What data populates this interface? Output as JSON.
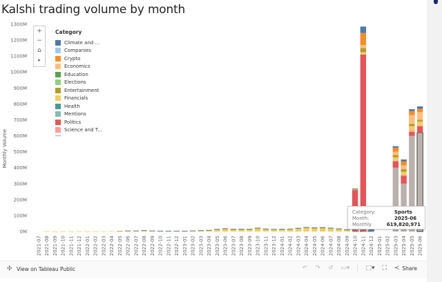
{
  "title": "Kalshi trading volume by month",
  "zoom_controls": {
    "zoom_in": "+",
    "zoom_out": "−",
    "home": "⌂",
    "pan": "▸"
  },
  "legend": {
    "title": "Category",
    "items": [
      {
        "label": "Climate and ...",
        "color": "#4e79a7"
      },
      {
        "label": "Companies",
        "color": "#a0cbe8"
      },
      {
        "label": "Crypto",
        "color": "#f28e2b"
      },
      {
        "label": "Economics",
        "color": "#ffbe7d"
      },
      {
        "label": "Education",
        "color": "#59a14f"
      },
      {
        "label": "Elections",
        "color": "#8cd17d"
      },
      {
        "label": "Entertainment",
        "color": "#b6992d"
      },
      {
        "label": "Financials",
        "color": "#f1ce63"
      },
      {
        "label": "Health",
        "color": "#499894"
      },
      {
        "label": "Mentions",
        "color": "#86bcb6"
      },
      {
        "label": "Politics",
        "color": "#e15759"
      },
      {
        "label": "Science and T...",
        "color": "#ff9d9a"
      }
    ]
  },
  "tooltip": {
    "category_label": "Category:",
    "category_value": "Sports",
    "month_label": "Month:",
    "month_value": "2025-06",
    "volume_label": "Monthly Volume:",
    "volume_value": "619,820,971"
  },
  "footer": {
    "view_label": "View on Tableau Public",
    "share_label": "Share"
  },
  "chart_data": {
    "type": "bar",
    "stacked": true,
    "title": "Kalshi trading volume by month",
    "xlabel": "",
    "ylabel": "Monthly Volume",
    "ylim": [
      0,
      1300
    ],
    "yticks": [
      "0M",
      "100M",
      "200M",
      "300M",
      "400M",
      "500M",
      "600M",
      "700M",
      "800M",
      "900M",
      "1000M",
      "1100M",
      "1200M",
      "1300M"
    ],
    "categories": [
      "2021-07",
      "2021-08",
      "2021-09",
      "2021-10",
      "2021-11",
      "2021-12",
      "2022-01",
      "2022-02",
      "2022-03",
      "2022-04",
      "2022-05",
      "2022-06",
      "2022-07",
      "2022-08",
      "2022-09",
      "2022-10",
      "2022-11",
      "2022-12",
      "2023-01",
      "2023-02",
      "2023-03",
      "2023-04",
      "2023-05",
      "2023-06",
      "2023-07",
      "2023-08",
      "2023-09",
      "2023-10",
      "2023-11",
      "2023-12",
      "2024-01",
      "2024-02",
      "2024-03",
      "2024-04",
      "2024-05",
      "2024-06",
      "2024-07",
      "2024-08",
      "2024-09",
      "2024-10",
      "2024-11",
      "2024-12",
      "2025-01",
      "2025-02",
      "2025-03",
      "2025-04",
      "2025-05",
      "2025-06"
    ],
    "series": [
      {
        "name": "Sports",
        "color": "#bab0ac",
        "values": [
          0,
          0,
          0,
          0,
          0,
          0,
          0,
          0,
          0,
          0,
          0,
          0,
          0,
          0,
          0,
          0,
          0,
          0,
          0,
          0,
          0,
          0,
          0,
          0,
          0,
          0,
          0,
          0,
          0,
          0,
          0,
          0,
          0,
          0,
          0,
          0,
          0,
          0,
          0,
          0,
          0,
          0,
          0,
          0,
          400,
          300,
          600,
          620
        ]
      },
      {
        "name": "Politics",
        "color": "#e15759",
        "values": [
          0,
          0,
          0,
          0,
          0,
          0,
          0,
          0,
          0,
          0,
          0,
          0,
          0,
          0,
          0,
          0,
          0,
          0,
          0,
          0,
          0,
          0,
          0,
          0,
          0,
          0,
          0,
          0,
          0,
          0,
          0,
          0,
          0,
          0,
          0,
          0,
          0,
          0,
          0,
          260,
          1110,
          0,
          0,
          0,
          40,
          50,
          25,
          40
        ]
      },
      {
        "name": "Science and T...",
        "color": "#ff9d9a",
        "values": [
          0,
          0,
          0,
          0,
          0,
          0,
          0,
          0,
          0,
          0,
          0,
          0,
          0,
          0,
          0,
          0,
          0,
          0,
          0,
          0,
          0,
          0,
          0,
          0,
          0,
          0,
          0,
          0,
          0,
          0,
          0,
          0,
          0,
          0,
          0,
          0,
          0,
          0,
          0,
          0,
          0,
          0,
          0,
          0,
          5,
          5,
          10,
          5
        ]
      },
      {
        "name": "Financials",
        "color": "#f1ce63",
        "values": [
          0,
          1,
          1,
          1,
          1,
          1,
          1,
          1,
          1,
          2,
          3,
          4,
          4,
          5,
          4,
          3,
          3,
          3,
          3,
          4,
          6,
          8,
          12,
          15,
          13,
          13,
          13,
          18,
          14,
          12,
          13,
          14,
          18,
          22,
          20,
          21,
          18,
          15,
          10,
          3,
          15,
          0,
          0,
          0,
          20,
          20,
          25,
          25
        ]
      },
      {
        "name": "Entertainment",
        "color": "#b6992d",
        "values": [
          0,
          0,
          0,
          0,
          0,
          0,
          0,
          0,
          0,
          0,
          1,
          1,
          1,
          2,
          1,
          1,
          1,
          1,
          1,
          1,
          1,
          1,
          2,
          3,
          2,
          2,
          2,
          3,
          2,
          2,
          2,
          2,
          3,
          3,
          3,
          3,
          3,
          2,
          2,
          3,
          25,
          0,
          0,
          0,
          15,
          15,
          15,
          10
        ]
      },
      {
        "name": "Economics",
        "color": "#ffbe7d",
        "values": [
          0,
          0,
          0,
          0,
          0,
          0,
          0,
          0,
          0,
          0,
          0,
          0,
          0,
          0,
          0,
          0,
          0,
          0,
          0,
          0,
          0,
          0,
          0,
          0,
          0,
          0,
          0,
          0,
          0,
          0,
          0,
          0,
          0,
          0,
          0,
          0,
          0,
          0,
          0,
          0,
          20,
          0,
          0,
          0,
          20,
          25,
          55,
          50
        ]
      },
      {
        "name": "Crypto",
        "color": "#f28e2b",
        "values": [
          0,
          0,
          0,
          0,
          0,
          0,
          0,
          0,
          0,
          0,
          0,
          0,
          0,
          0,
          0,
          0,
          0,
          0,
          0,
          0,
          0,
          0,
          0,
          0,
          0,
          0,
          0,
          0,
          0,
          0,
          0,
          0,
          0,
          0,
          0,
          0,
          0,
          0,
          0,
          0,
          75,
          0,
          0,
          0,
          25,
          25,
          25,
          20
        ]
      },
      {
        "name": "Climate and ...",
        "color": "#4e79a7",
        "values": [
          0,
          0,
          0,
          0,
          0,
          0,
          0,
          0,
          0,
          0,
          0,
          1,
          1,
          1,
          1,
          1,
          1,
          1,
          1,
          1,
          1,
          1,
          2,
          2,
          2,
          2,
          2,
          3,
          2,
          2,
          2,
          2,
          2,
          3,
          3,
          3,
          3,
          2,
          2,
          4,
          40,
          55,
          0,
          0,
          10,
          12,
          12,
          15
        ]
      }
    ]
  }
}
